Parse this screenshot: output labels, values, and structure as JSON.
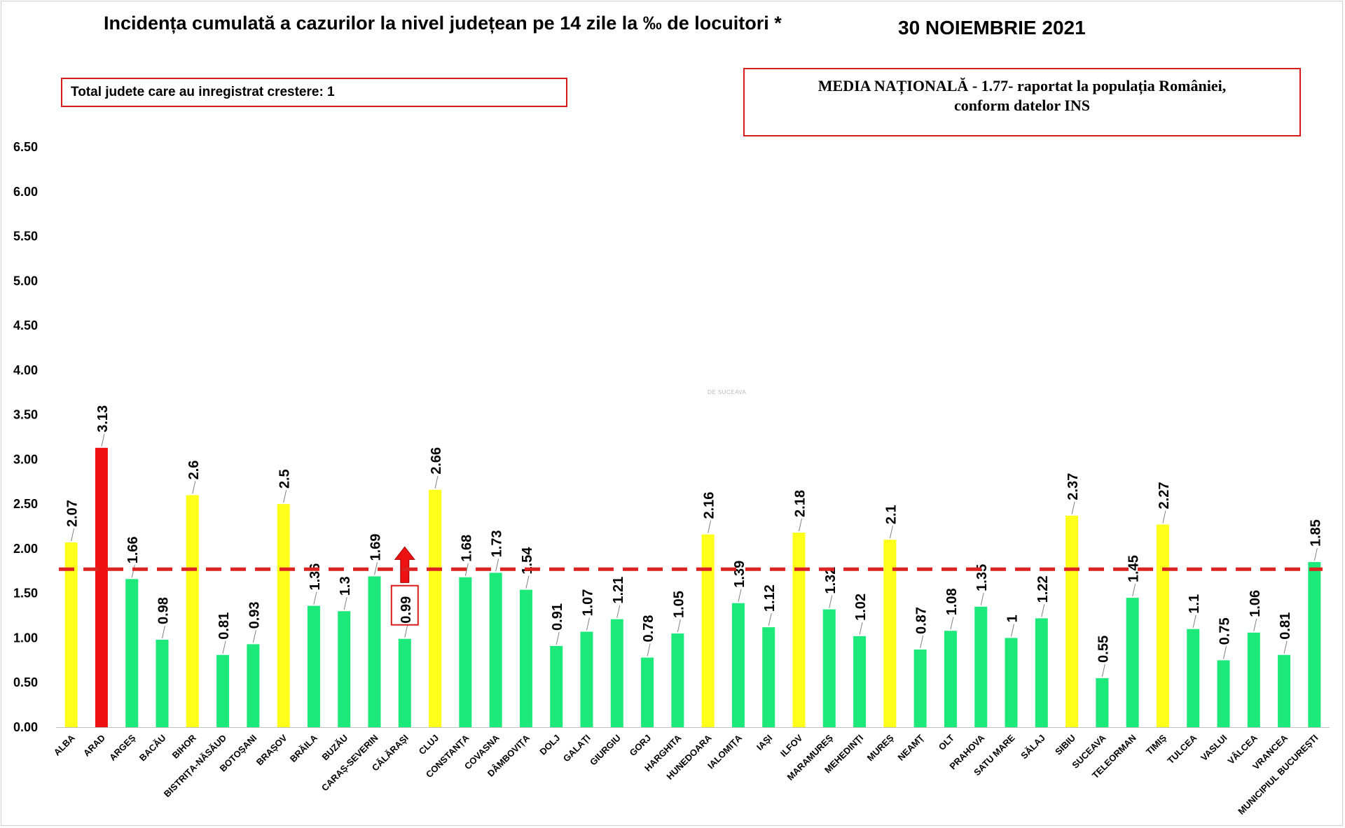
{
  "header": {
    "title": "Incidența cumulată a cazurilor la nivel județean pe 14 zile la ‰ de locuitori *",
    "date": "30 NOIEMBRIE 2021",
    "increase_box": "Total judete care au inregistrat crestere: 1",
    "national_line1": "MEDIA NAȚIONALĂ  - 1.77-  raportat la populația României,",
    "national_line2": "conform datelor INS",
    "watermark": "DE SUCEAVA"
  },
  "colors": {
    "green": "#1de87a",
    "yellow": "#ffff1a",
    "red": "#ee1111",
    "average_line": "#dd2222",
    "box_border": "#d81b1b"
  },
  "chart_data": {
    "type": "bar",
    "categories": [
      "ALBA",
      "ARAD",
      "ARGEȘ",
      "BACĂU",
      "BIHOR",
      "BISTRIȚA-NĂSĂUD",
      "BOTOȘANI",
      "BRAȘOV",
      "BRĂILA",
      "BUZĂU",
      "CARAȘ-SEVERIN",
      "CĂLĂRAȘI",
      "CLUJ",
      "CONSTANȚA",
      "COVASNA",
      "DÂMBOVIȚA",
      "DOLJ",
      "GALAȚI",
      "GIURGIU",
      "GORJ",
      "HARGHITA",
      "HUNEDOARA",
      "IALOMIȚA",
      "IAȘI",
      "ILFOV",
      "MARAMUREȘ",
      "MEHEDINȚI",
      "MUREȘ",
      "NEAMȚ",
      "OLT",
      "PRAHOVA",
      "SATU MARE",
      "SĂLAJ",
      "SIBIU",
      "SUCEAVA",
      "TELEORMAN",
      "TIMIȘ",
      "TULCEA",
      "VASLUI",
      "VÂLCEA",
      "VRANCEA",
      "MUNICIPIUL BUCUREȘTI"
    ],
    "values": [
      2.07,
      3.13,
      1.66,
      0.98,
      2.6,
      0.81,
      0.93,
      2.5,
      1.36,
      1.3,
      1.69,
      0.99,
      2.66,
      1.68,
      1.73,
      1.54,
      0.91,
      1.07,
      1.21,
      0.78,
      1.05,
      2.16,
      1.39,
      1.12,
      2.18,
      1.32,
      1.02,
      2.1,
      0.87,
      1.08,
      1.35,
      1,
      1.22,
      2.37,
      0.55,
      1.45,
      2.27,
      1.1,
      0.75,
      1.06,
      0.81,
      1.85
    ],
    "labels": [
      "2.07",
      "3.13",
      "1.66",
      "0.98",
      "2.6",
      "0.81",
      "0.93",
      "2.5",
      "1.36",
      "1.3",
      "1.69",
      "0.99",
      "2.66",
      "1.68",
      "1.73",
      "1.54",
      "0.91",
      "1.07",
      "1.21",
      "0.78",
      "1.05",
      "2.16",
      "1.39",
      "1.12",
      "2.18",
      "1.32",
      "1.02",
      "2.1",
      "0.87",
      "1.08",
      "1.35",
      "1",
      "1.22",
      "2.37",
      "0.55",
      "1.45",
      "2.27",
      "1.1",
      "0.75",
      "1.06",
      "0.81",
      "1.85"
    ],
    "bar_colors": [
      "yellow",
      "red",
      "green",
      "green",
      "yellow",
      "green",
      "green",
      "yellow",
      "green",
      "green",
      "green",
      "green",
      "yellow",
      "green",
      "green",
      "green",
      "green",
      "green",
      "green",
      "green",
      "green",
      "yellow",
      "green",
      "green",
      "yellow",
      "green",
      "green",
      "yellow",
      "green",
      "green",
      "green",
      "green",
      "green",
      "yellow",
      "green",
      "green",
      "yellow",
      "green",
      "green",
      "green",
      "green",
      "green"
    ],
    "yticks": [
      "0.00",
      "0.50",
      "1.00",
      "1.50",
      "2.00",
      "2.50",
      "3.00",
      "3.50",
      "4.00",
      "4.50",
      "5.00",
      "5.50",
      "6.00",
      "6.50"
    ],
    "ylim": [
      0,
      6.5
    ],
    "average": 1.77,
    "increase_marker": "CĂLĂRAȘI",
    "grid": false,
    "legend": "none"
  }
}
